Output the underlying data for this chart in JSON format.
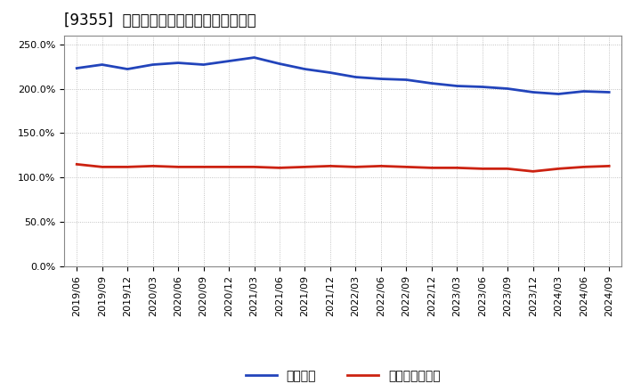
{
  "title": "[9355]  固定比率、固定長期適合率の推移",
  "x_labels": [
    "2019/06",
    "2019/09",
    "2019/12",
    "2020/03",
    "2020/06",
    "2020/09",
    "2020/12",
    "2021/03",
    "2021/06",
    "2021/09",
    "2021/12",
    "2022/03",
    "2022/06",
    "2022/09",
    "2022/12",
    "2023/03",
    "2023/06",
    "2023/09",
    "2023/12",
    "2024/03",
    "2024/06",
    "2024/09"
  ],
  "fixed_ratio": [
    223,
    227,
    222,
    227,
    229,
    227,
    231,
    235,
    228,
    222,
    218,
    213,
    211,
    210,
    206,
    203,
    202,
    200,
    196,
    194,
    197,
    196
  ],
  "fixed_lt_ratio": [
    115,
    112,
    112,
    113,
    112,
    112,
    112,
    112,
    111,
    112,
    113,
    112,
    113,
    112,
    111,
    111,
    110,
    110,
    107,
    110,
    112,
    113
  ],
  "line_color_fixed": "#2244bb",
  "line_color_lt": "#cc2211",
  "background_color": "#ffffff",
  "plot_bg_color": "#ffffff",
  "grid_color": "#aaaaaa",
  "legend_labels": [
    "固定比率",
    "固定長期適合率"
  ],
  "ylim": [
    0,
    260
  ],
  "ytick_vals": [
    0,
    50,
    100,
    150,
    200,
    250
  ],
  "ytick_labels": [
    "0.0%",
    "50.0%",
    "100.0%",
    "150.0%",
    "200.0%",
    "250.0%"
  ],
  "title_fontsize": 12,
  "tick_fontsize": 8,
  "legend_fontsize": 10,
  "linewidth": 2.0
}
